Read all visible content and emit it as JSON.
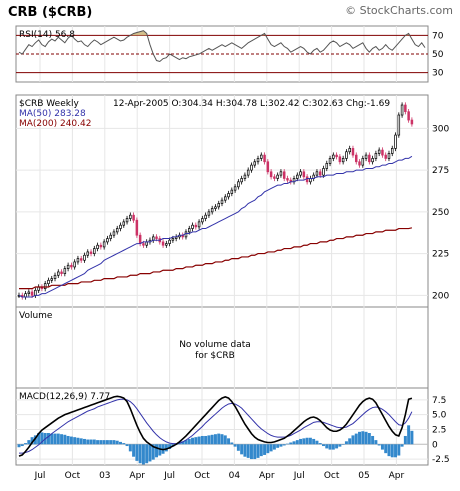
{
  "header": {
    "title": "CRB ($CRB)",
    "watermark": "© StockCharts.com"
  },
  "chart_data": [
    {
      "type": "line",
      "panel": "rsi",
      "legend": "RSI(14) 56.8",
      "y_ticks": [
        70,
        50,
        30
      ],
      "ylim": [
        20,
        80
      ],
      "reference_lines": [
        70,
        50,
        30
      ],
      "series": [
        {
          "name": "RSI(14)",
          "values": [
            52,
            50,
            55,
            60,
            58,
            62,
            65,
            60,
            58,
            63,
            66,
            64,
            68,
            65,
            62,
            67,
            70,
            66,
            63,
            64,
            60,
            58,
            62,
            65,
            63,
            60,
            62,
            64,
            66,
            68,
            66,
            64,
            65,
            68,
            70,
            72,
            73,
            74,
            75,
            72,
            60,
            50,
            43,
            42,
            45,
            46,
            50,
            48,
            46,
            44,
            46,
            45,
            47,
            48,
            49,
            50,
            52,
            54,
            56,
            54,
            56,
            58,
            60,
            58,
            60,
            62,
            60,
            58,
            56,
            59,
            62,
            64,
            66,
            68,
            70,
            72,
            66,
            60,
            58,
            60,
            62,
            58,
            56,
            52,
            54,
            56,
            58,
            56,
            52,
            50,
            54,
            56,
            52,
            54,
            58,
            62,
            64,
            62,
            58,
            60,
            62,
            60,
            56,
            58,
            60,
            62,
            56,
            52,
            56,
            58,
            54,
            56,
            60,
            56,
            54,
            58,
            62,
            66,
            70,
            72,
            66,
            60,
            58,
            62,
            56.8
          ]
        }
      ],
      "colors": {
        "line": "#555555",
        "fill": "#c8b070",
        "ref": "#800000"
      }
    },
    {
      "type": "line",
      "panel": "price",
      "legend": {
        "symbol": "$CRB Weekly",
        "ma50": "MA(50) 283.28",
        "ma200": "MA(200) 240.42",
        "quote": "12-Apr-2005  O:304.34  H:304.78  L:302.42  C:302.63  Chg:-1.69"
      },
      "y_ticks": [
        300,
        275,
        250,
        225,
        200
      ],
      "ylim": [
        193,
        320
      ],
      "series": [
        {
          "name": "$CRB Weekly",
          "values": [
            200,
            199,
            201,
            202,
            200,
            203,
            205,
            204,
            207,
            209,
            210,
            212,
            214,
            213,
            216,
            218,
            217,
            220,
            222,
            221,
            224,
            226,
            225,
            228,
            230,
            229,
            232,
            234,
            236,
            238,
            240,
            242,
            244,
            246,
            248,
            245,
            236,
            231,
            230,
            232,
            233,
            235,
            234,
            232,
            230,
            231,
            233,
            234,
            235,
            236,
            235,
            238,
            240,
            242,
            241,
            244,
            246,
            248,
            250,
            252,
            253,
            255,
            257,
            259,
            261,
            263,
            265,
            268,
            270,
            272,
            275,
            278,
            280,
            282,
            284,
            280,
            274,
            271,
            270,
            272,
            274,
            270,
            269,
            268,
            270,
            272,
            274,
            271,
            268,
            270,
            272,
            274,
            272,
            276,
            279,
            282,
            284,
            283,
            280,
            282,
            286,
            288,
            284,
            280,
            278,
            282,
            284,
            280,
            282,
            285,
            287,
            284,
            282,
            285,
            288,
            296,
            308,
            314,
            310,
            305,
            302.63
          ]
        },
        {
          "name": "MA(50)",
          "values": [
            200,
            199,
            199,
            199,
            199,
            200,
            200,
            201,
            201,
            202,
            203,
            204,
            205,
            206,
            207,
            208,
            209,
            210,
            211,
            212,
            213,
            215,
            216,
            217,
            218,
            219,
            221,
            222,
            223,
            224,
            225,
            226,
            227,
            228,
            229,
            230,
            231,
            231,
            232,
            232,
            232,
            233,
            233,
            233,
            234,
            234,
            234,
            235,
            235,
            236,
            236,
            237,
            237,
            238,
            238,
            239,
            240,
            240,
            241,
            242,
            243,
            244,
            245,
            246,
            247,
            248,
            249,
            250,
            252,
            253,
            255,
            256,
            257,
            259,
            260,
            262,
            263,
            264,
            265,
            266,
            266,
            267,
            267,
            268,
            268,
            269,
            269,
            269,
            270,
            270,
            270,
            271,
            271,
            271,
            272,
            272,
            272,
            273,
            273,
            273,
            274,
            274,
            274,
            275,
            275,
            275,
            276,
            276,
            276,
            277,
            277,
            278,
            278,
            279,
            279,
            280,
            281,
            281,
            282,
            282,
            283.28
          ]
        },
        {
          "name": "MA(200)",
          "values": [
            204,
            204,
            204,
            204,
            204,
            205,
            205,
            205,
            205,
            205,
            206,
            206,
            206,
            206,
            206,
            207,
            207,
            207,
            207,
            208,
            208,
            208,
            208,
            209,
            209,
            209,
            210,
            210,
            210,
            210,
            211,
            211,
            211,
            211,
            212,
            212,
            212,
            213,
            213,
            213,
            213,
            214,
            214,
            214,
            215,
            215,
            215,
            215,
            216,
            216,
            216,
            217,
            217,
            217,
            218,
            218,
            218,
            219,
            219,
            219,
            220,
            220,
            220,
            221,
            221,
            222,
            222,
            222,
            223,
            223,
            223,
            224,
            224,
            225,
            225,
            225,
            226,
            226,
            226,
            227,
            227,
            228,
            228,
            228,
            229,
            229,
            229,
            230,
            230,
            231,
            231,
            231,
            232,
            232,
            232,
            233,
            233,
            234,
            234,
            234,
            235,
            235,
            235,
            236,
            236,
            236,
            237,
            237,
            237,
            238,
            238,
            238,
            239,
            239,
            239,
            239,
            240,
            240,
            240,
            240,
            240.42
          ]
        }
      ],
      "colors": {
        "price": "#000000",
        "up": "#000000",
        "down": "#cc3366",
        "ma50": "#3333aa",
        "ma200": "#880000"
      }
    },
    {
      "type": "bar",
      "panel": "volume",
      "legend": "Volume",
      "message_line1": "No volume data",
      "message_line2": "for $CRB"
    },
    {
      "type": "line",
      "panel": "macd",
      "legend": "MACD(12,26,9) 7.77",
      "y_ticks": [
        7.5,
        5.0,
        2.5,
        0,
        -2.5
      ],
      "ylim": [
        -3.5,
        9.5
      ],
      "x_labels": [
        "Jul",
        "Oct",
        "03",
        "Apr",
        "Jul",
        "Oct",
        "04",
        "Apr",
        "Jul",
        "Oct",
        "05",
        "Apr"
      ],
      "series": [
        {
          "name": "MACD",
          "values": [
            -2.0,
            -1.8,
            -1.2,
            -0.5,
            0.3,
            1.0,
            1.8,
            2.4,
            2.8,
            3.2,
            3.6,
            4.0,
            4.4,
            4.7,
            5.0,
            5.2,
            5.4,
            5.6,
            5.8,
            6.0,
            6.2,
            6.4,
            6.6,
            6.8,
            7.0,
            7.2,
            7.4,
            7.6,
            7.8,
            8.0,
            8.1,
            8.0,
            7.8,
            7.2,
            6.0,
            4.6,
            3.2,
            2.0,
            1.0,
            0.4,
            0.0,
            -0.4,
            -0.6,
            -0.8,
            -0.9,
            -0.8,
            -0.6,
            -0.3,
            0.0,
            0.4,
            0.9,
            1.4,
            2.0,
            2.6,
            3.2,
            3.8,
            4.4,
            5.0,
            5.6,
            6.2,
            6.8,
            7.4,
            7.8,
            8.0,
            7.8,
            7.2,
            6.4,
            5.4,
            4.4,
            3.4,
            2.6,
            1.8,
            1.2,
            0.8,
            0.6,
            0.4,
            0.3,
            0.3,
            0.4,
            0.6,
            0.8,
            1.0,
            1.4,
            1.8,
            2.3,
            2.8,
            3.3,
            3.8,
            4.2,
            4.5,
            4.6,
            4.4,
            4.0,
            3.4,
            2.8,
            2.4,
            2.2,
            2.2,
            2.4,
            2.8,
            3.4,
            4.2,
            5.0,
            5.8,
            6.6,
            7.2,
            7.6,
            7.8,
            7.6,
            7.0,
            6.0,
            5.0,
            4.0,
            3.0,
            2.2,
            1.6,
            1.4,
            2.8,
            5.0,
            7.6,
            7.77
          ]
        },
        {
          "name": "Signal",
          "values": [
            -1.5,
            -1.5,
            -1.4,
            -1.2,
            -0.9,
            -0.5,
            -0.1,
            0.4,
            0.9,
            1.3,
            1.8,
            2.2,
            2.6,
            3.0,
            3.4,
            3.8,
            4.1,
            4.4,
            4.7,
            5.0,
            5.3,
            5.6,
            5.8,
            6.0,
            6.3,
            6.5,
            6.7,
            6.9,
            7.1,
            7.3,
            7.5,
            7.6,
            7.6,
            7.5,
            7.2,
            6.7,
            6.0,
            5.2,
            4.4,
            3.6,
            2.9,
            2.2,
            1.6,
            1.1,
            0.7,
            0.4,
            0.2,
            0.1,
            0.1,
            0.2,
            0.4,
            0.7,
            1.1,
            1.5,
            2.0,
            2.5,
            3.0,
            3.6,
            4.1,
            4.6,
            5.1,
            5.6,
            6.1,
            6.5,
            6.8,
            6.9,
            6.8,
            6.5,
            6.1,
            5.5,
            4.9,
            4.3,
            3.7,
            3.1,
            2.6,
            2.2,
            1.8,
            1.5,
            1.3,
            1.2,
            1.2,
            1.2,
            1.3,
            1.5,
            1.8,
            2.1,
            2.4,
            2.8,
            3.1,
            3.4,
            3.7,
            3.8,
            3.8,
            3.7,
            3.5,
            3.3,
            3.1,
            2.9,
            2.8,
            2.8,
            2.9,
            3.2,
            3.5,
            4.0,
            4.5,
            5.0,
            5.5,
            5.9,
            6.2,
            6.3,
            6.2,
            5.9,
            5.5,
            5.0,
            4.4,
            3.8,
            3.3,
            3.2,
            3.6,
            4.4,
            5.5
          ]
        }
      ],
      "colors": {
        "macd": "#000000",
        "signal": "#3333aa",
        "histogram": "#3388cc"
      }
    }
  ]
}
